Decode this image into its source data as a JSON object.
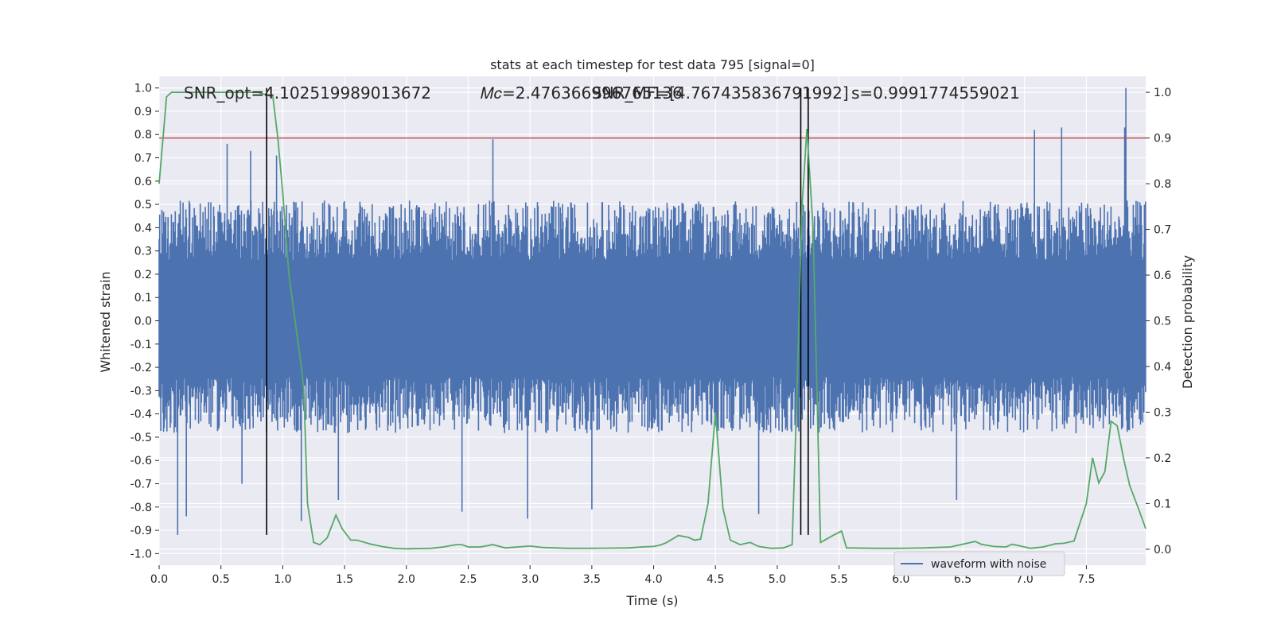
{
  "chart_data": {
    "type": "line",
    "title": "stats at each timestep for test data 795 [signal=0]",
    "xlabel": "Time (s)",
    "ylabel": "Whitened strain",
    "y2label": "Detection probability",
    "xlim": [
      0.0,
      7.98
    ],
    "ylim": [
      -1.05,
      1.05
    ],
    "y2lim": [
      -0.035,
      1.035
    ],
    "x_ticks": [
      "0.0",
      "0.5",
      "1.0",
      "1.5",
      "2.0",
      "2.5",
      "3.0",
      "3.5",
      "4.0",
      "4.5",
      "5.0",
      "5.5",
      "6.0",
      "6.5",
      "7.0",
      "7.5"
    ],
    "y_ticks": [
      "1.0",
      "0.9",
      "0.8",
      "0.7",
      "0.6",
      "0.5",
      "0.4",
      "0.3",
      "0.2",
      "0.1",
      "0.0",
      "-0.1",
      "-0.2",
      "-0.3",
      "-0.4",
      "-0.5",
      "-0.6",
      "-0.7",
      "-0.8",
      "-0.9",
      "-1.0"
    ],
    "y2_ticks": [
      "1.0",
      "0.9",
      "0.8",
      "0.7",
      "0.6",
      "0.5",
      "0.4",
      "0.3",
      "0.2",
      "0.1",
      "0.0"
    ],
    "grid": true,
    "legend_position": "bottom-right",
    "annotations": [
      {
        "text": "SNR_opt=4.102519989013672"
      },
      {
        "text": "𝑀𝑐=2.476366996765136"
      },
      {
        "text": "SNR_MF=[4.767435836791992]"
      },
      {
        "text": "s=0.99917745590​21"
      }
    ],
    "series": [
      {
        "name": "waveform with noise",
        "color": "#4c72b0",
        "envelope": {
          "upper_typical": 0.45,
          "lower_typical": -0.42,
          "upper_max": 1.0,
          "lower_min": -0.92,
          "dense_band": [
            -0.24,
            0.26
          ]
        },
        "peaks": [
          {
            "x": 0.15,
            "y": -0.92
          },
          {
            "x": 0.22,
            "y": -0.84
          },
          {
            "x": 0.55,
            "y": 0.76
          },
          {
            "x": 0.67,
            "y": -0.7
          },
          {
            "x": 0.74,
            "y": 0.73
          },
          {
            "x": 0.95,
            "y": 0.71
          },
          {
            "x": 1.15,
            "y": -0.86
          },
          {
            "x": 1.45,
            "y": -0.77
          },
          {
            "x": 2.45,
            "y": -0.82
          },
          {
            "x": 2.7,
            "y": 0.78
          },
          {
            "x": 2.98,
            "y": -0.85
          },
          {
            "x": 3.5,
            "y": -0.81
          },
          {
            "x": 4.85,
            "y": -0.83
          },
          {
            "x": 5.25,
            "y": 0.84
          },
          {
            "x": 6.45,
            "y": -0.77
          },
          {
            "x": 7.08,
            "y": 0.82
          },
          {
            "x": 7.3,
            "y": 0.83
          },
          {
            "x": 7.82,
            "y": 1.0
          },
          {
            "x": 7.81,
            "y": 0.83
          }
        ]
      },
      {
        "name": "",
        "color": "#55a868",
        "axis": "right",
        "x": [
          0.0,
          0.06,
          0.1,
          0.2,
          0.5,
          0.8,
          0.86,
          0.92,
          0.96,
          1.0,
          1.05,
          1.1,
          1.15,
          1.17,
          1.2,
          1.25,
          1.3,
          1.36,
          1.43,
          1.48,
          1.55,
          1.6,
          1.7,
          1.8,
          1.9,
          2.0,
          2.2,
          2.3,
          2.4,
          2.45,
          2.5,
          2.6,
          2.7,
          2.8,
          2.9,
          3.0,
          3.1,
          3.3,
          3.5,
          3.8,
          3.9,
          4.0,
          4.05,
          4.1,
          4.2,
          4.28,
          4.33,
          4.38,
          4.44,
          4.5,
          4.56,
          4.62,
          4.7,
          4.78,
          4.85,
          4.95,
          5.05,
          5.12,
          5.16,
          5.2,
          5.24,
          5.29,
          5.35,
          5.45,
          5.52,
          5.56,
          5.8,
          6.0,
          6.2,
          6.4,
          6.6,
          6.65,
          6.75,
          6.85,
          6.9,
          6.95,
          7.05,
          7.15,
          7.25,
          7.32,
          7.4,
          7.5,
          7.55,
          7.6,
          7.65,
          7.7,
          7.75,
          7.8,
          7.85,
          7.92,
          7.98
        ],
        "y": [
          0.8,
          0.99,
          1.0,
          1.0,
          1.0,
          1.0,
          0.995,
          0.99,
          0.9,
          0.78,
          0.6,
          0.5,
          0.4,
          0.35,
          0.1,
          0.015,
          0.01,
          0.025,
          0.075,
          0.045,
          0.02,
          0.02,
          0.012,
          0.006,
          0.002,
          0.001,
          0.002,
          0.005,
          0.01,
          0.01,
          0.005,
          0.005,
          0.01,
          0.003,
          0.005,
          0.007,
          0.004,
          0.002,
          0.002,
          0.003,
          0.005,
          0.006,
          0.009,
          0.014,
          0.03,
          0.026,
          0.02,
          0.022,
          0.1,
          0.3,
          0.09,
          0.02,
          0.01,
          0.015,
          0.006,
          0.002,
          0.003,
          0.01,
          0.35,
          0.75,
          0.92,
          0.7,
          0.015,
          0.03,
          0.04,
          0.003,
          0.002,
          0.002,
          0.003,
          0.005,
          0.017,
          0.011,
          0.006,
          0.005,
          0.011,
          0.008,
          0.002,
          0.005,
          0.012,
          0.013,
          0.018,
          0.1,
          0.2,
          0.145,
          0.17,
          0.28,
          0.27,
          0.2,
          0.14,
          0.09,
          0.045
        ]
      }
    ],
    "hlines": [
      {
        "y2": 0.9,
        "color": "#c44e52"
      }
    ],
    "vlines": [
      {
        "x": 0.87
      },
      {
        "x": 5.19
      },
      {
        "x": 5.25
      }
    ]
  }
}
